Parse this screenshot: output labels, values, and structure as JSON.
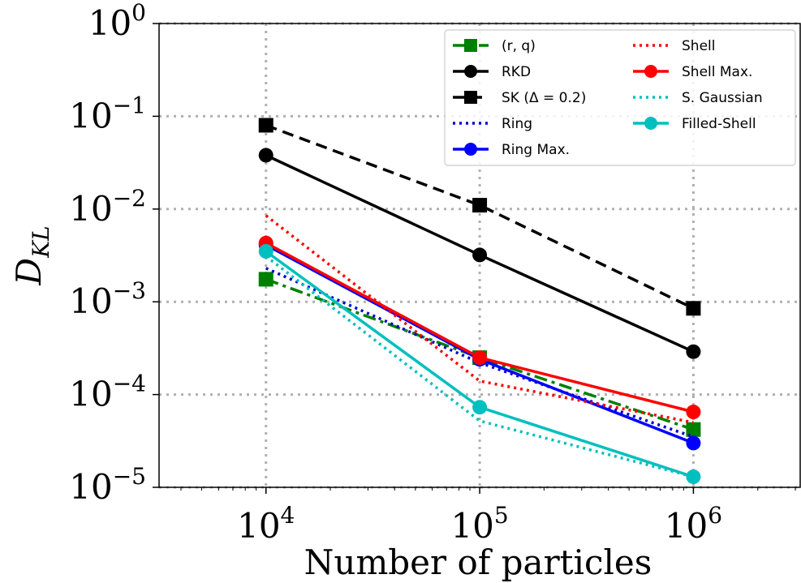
{
  "chart_data": {
    "type": "line",
    "xscale": "log",
    "yscale": "log",
    "xlabel": "Number of particles",
    "ylabel": "D",
    "ylabel_sub": "KL",
    "xlim": [
      3160,
      3160000
    ],
    "ylim": [
      1e-05,
      1
    ],
    "grid": true,
    "legend_position": "top-right",
    "x_ticks": [
      {
        "value": 10000,
        "base": "10",
        "exp": "4"
      },
      {
        "value": 100000,
        "base": "10",
        "exp": "5"
      },
      {
        "value": 1000000,
        "base": "10",
        "exp": "6"
      }
    ],
    "y_ticks": [
      {
        "value": 1,
        "base": "10",
        "exp": "0"
      },
      {
        "value": 0.1,
        "base": "10",
        "exp": "−1"
      },
      {
        "value": 0.01,
        "base": "10",
        "exp": "−2"
      },
      {
        "value": 0.001,
        "base": "10",
        "exp": "−3"
      },
      {
        "value": 0.0001,
        "base": "10",
        "exp": "−4"
      },
      {
        "value": 1e-05,
        "base": "10",
        "exp": "−5"
      }
    ],
    "x": [
      10000,
      100000,
      1000000
    ],
    "series": [
      {
        "name": "(r, q)",
        "legend_html": "(<tspan font-style='italic'>r</tspan>, <tspan font-style='italic'>q</tspan>)",
        "color": "#008000",
        "dash": "dashdot",
        "marker": "square",
        "values": [
          0.00175,
          0.00025,
          4.2e-05
        ]
      },
      {
        "name": "RKD",
        "color": "#000000",
        "dash": "solid",
        "marker": "circle",
        "values": [
          0.038,
          0.0032,
          0.00029
        ]
      },
      {
        "name": "SK (Δ = 0.2)",
        "color": "#000000",
        "dash": "dashed",
        "marker": "square",
        "values": [
          0.08,
          0.011,
          0.00085
        ]
      },
      {
        "name": "Ring",
        "color": "#0000cc",
        "dash": "dotted",
        "marker": "none",
        "values": [
          0.0023,
          0.00022,
          3.5e-05
        ]
      },
      {
        "name": "Ring Max.",
        "color": "#0000ff",
        "dash": "solid",
        "marker": "circle",
        "values": [
          0.0041,
          0.00024,
          3e-05
        ]
      },
      {
        "name": "Shell",
        "color": "#ff0000",
        "dash": "dotted",
        "marker": "none",
        "values": [
          0.0085,
          0.00014,
          5e-05
        ]
      },
      {
        "name": "Shell Max.",
        "color": "#ff0000",
        "dash": "solid",
        "marker": "circle",
        "values": [
          0.0043,
          0.00025,
          6.5e-05
        ]
      },
      {
        "name": "S. Gaussian",
        "color": "#00bfbf",
        "dash": "dotted",
        "marker": "none",
        "values": [
          0.0031,
          5.2e-05,
          1.3e-05
        ]
      },
      {
        "name": "Filled-Shell",
        "color": "#00bfbf",
        "dash": "solid",
        "marker": "circle",
        "values": [
          0.0035,
          7.3e-05,
          1.3e-05
        ]
      }
    ]
  }
}
